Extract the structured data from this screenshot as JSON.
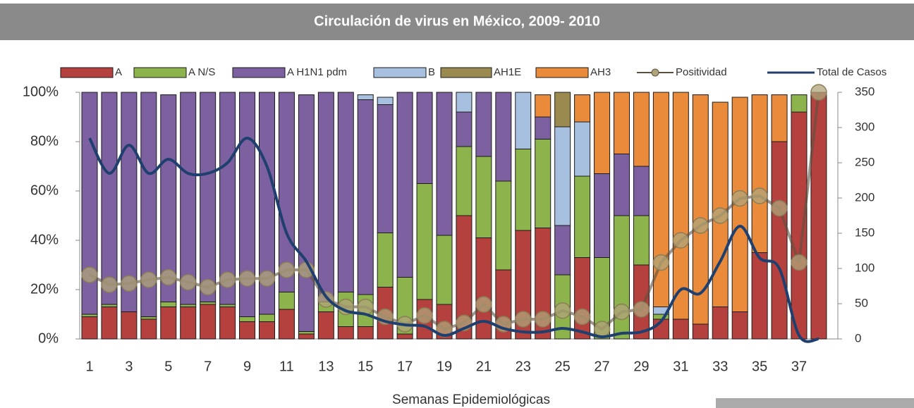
{
  "chart_data": {
    "type": "bar",
    "stacked": true,
    "title": "Circulación de virus en México, 2009- 2010",
    "x_label": "Semanas Epidemiológicas",
    "categories": [
      1,
      null,
      3,
      null,
      5,
      null,
      7,
      null,
      9,
      null,
      11,
      null,
      13,
      null,
      15,
      null,
      17,
      null,
      19,
      null,
      21,
      null,
      23,
      null,
      25,
      null,
      27,
      null,
      29,
      null,
      31,
      null,
      33,
      null,
      35,
      null,
      37,
      null
    ],
    "series": [
      {
        "name": "A",
        "color": "#b5413e",
        "values": [
          9,
          13,
          11,
          8,
          13,
          13,
          14,
          13,
          7,
          7,
          12,
          2,
          11,
          5,
          5,
          21,
          2,
          16,
          14,
          50,
          41,
          28,
          44,
          45,
          0,
          33,
          0,
          0,
          30,
          8,
          8,
          6,
          13,
          11,
          35,
          80,
          92,
          100
        ]
      },
      {
        "name": "A N/S",
        "color": "#8db44c",
        "values": [
          1,
          1,
          0,
          1,
          2,
          1,
          1,
          1,
          2,
          3,
          7,
          1,
          4,
          14,
          13,
          22,
          23,
          47,
          28,
          28,
          33,
          36,
          33,
          36,
          26,
          33,
          33,
          50,
          20,
          2,
          0,
          0,
          0,
          0,
          0,
          0,
          7,
          0
        ]
      },
      {
        "name": "A H1N1 pdm",
        "color": "#7d60a0",
        "values": [
          90,
          86,
          89,
          91,
          84,
          86,
          85,
          86,
          91,
          90,
          81,
          96,
          85,
          81,
          79,
          52,
          75,
          37,
          58,
          14,
          26,
          36,
          0,
          9,
          20,
          0,
          34,
          25,
          20,
          0,
          0,
          0,
          0,
          0,
          0,
          0,
          0,
          0
        ]
      },
      {
        "name": "B",
        "color": "#a7c0e0",
        "values": [
          0,
          0,
          0,
          0,
          0,
          0,
          0,
          0,
          0,
          0,
          0,
          0,
          0,
          0,
          2,
          3,
          0,
          0,
          0,
          8,
          0,
          0,
          23,
          0,
          40,
          22,
          0,
          0,
          0,
          3,
          0,
          0,
          0,
          0,
          0,
          0,
          0,
          0
        ]
      },
      {
        "name": "AH1E",
        "color": "#9b8a50",
        "values": [
          0,
          0,
          0,
          0,
          0,
          0,
          0,
          0,
          0,
          0,
          0,
          0,
          0,
          0,
          0,
          0,
          0,
          0,
          0,
          0,
          0,
          0,
          0,
          0,
          14,
          0,
          0,
          0,
          0,
          0,
          0,
          0,
          0,
          0,
          0,
          0,
          0,
          0
        ]
      },
      {
        "name": "AH3",
        "color": "#e98b3a",
        "values": [
          0,
          0,
          0,
          0,
          0,
          0,
          0,
          0,
          0,
          0,
          0,
          0,
          0,
          0,
          0,
          0,
          0,
          0,
          0,
          0,
          0,
          0,
          0,
          9,
          0,
          11,
          33,
          25,
          30,
          87,
          92,
          93,
          83,
          87,
          64,
          19,
          0,
          0
        ]
      },
      {
        "name": "Positividad",
        "type": "line",
        "marker": true,
        "color": "#b0a47a",
        "values": [
          26,
          22,
          22.5,
          24,
          25,
          23,
          21,
          24,
          24.5,
          24.5,
          28,
          28,
          16,
          13,
          13,
          9,
          6,
          9.5,
          4,
          6.5,
          14,
          6,
          8,
          8,
          11.5,
          9,
          4,
          11,
          12,
          31,
          40,
          46,
          50,
          57,
          58,
          53,
          31,
          100
        ]
      },
      {
        "name": "Total de Casos",
        "type": "line",
        "axis": "y2",
        "color": "#1f3f6e",
        "values": [
          285,
          235,
          275,
          235,
          255,
          235,
          235,
          250,
          285,
          245,
          150,
          110,
          60,
          40,
          35,
          25,
          20,
          18,
          5,
          15,
          25,
          15,
          10,
          10,
          15,
          10,
          3,
          8,
          10,
          25,
          70,
          65,
          110,
          160,
          115,
          100,
          5,
          0
        ]
      }
    ],
    "ylim": [
      0,
      100
    ],
    "yticks": [
      {
        "value": 0,
        "label": "0%"
      },
      {
        "value": 20,
        "label": "20%"
      },
      {
        "value": 40,
        "label": "40%"
      },
      {
        "value": 60,
        "label": "60%"
      },
      {
        "value": 80,
        "label": "80%"
      },
      {
        "value": 100,
        "label": "100%"
      }
    ],
    "y2lim": [
      0,
      350
    ],
    "y2ticks": [
      0,
      50,
      100,
      150,
      200,
      250,
      300,
      350
    ],
    "legend": "top"
  }
}
